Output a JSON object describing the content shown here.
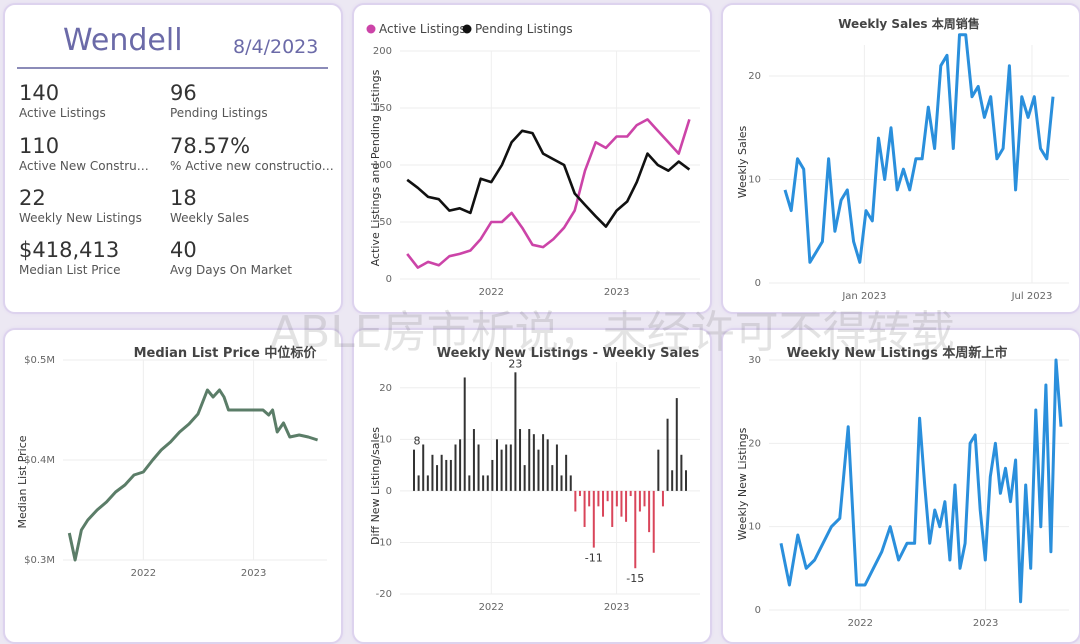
{
  "kpi_card": {
    "name": "Wendell",
    "date": "8/4/2023",
    "metrics": [
      {
        "value": "140",
        "label": "Active Listings"
      },
      {
        "value": "96",
        "label": "Pending Listings"
      },
      {
        "value": "110",
        "label": "Active New Constructions"
      },
      {
        "value": "78.57%",
        "label": "% Active new constructions"
      },
      {
        "value": "22",
        "label": "Weekly New Listings"
      },
      {
        "value": "18",
        "label": "Weekly Sales"
      },
      {
        "value": "$418,413",
        "label": "Median List Price"
      },
      {
        "value": "40",
        "label": "Avg Days On Market"
      }
    ]
  },
  "watermark": "ABLE房市析说，未经许可不得转载",
  "colors": {
    "active": "#cc44a8",
    "pending": "#111111",
    "blue": "#2a8fdc",
    "green": "#5b7d68",
    "pos_bar": "#333333",
    "neg_bar": "#d9455a"
  },
  "chart_data": [
    {
      "id": "listings",
      "type": "line",
      "title": "",
      "ylabel": "Active Listings and Pending Listings",
      "xlabel": "",
      "ylim": [
        0,
        200
      ],
      "yticks": [
        "0",
        "50",
        "100",
        "150",
        "200"
      ],
      "xticks": [
        "2022",
        "2023"
      ],
      "legend_position": "top-left",
      "grid": true,
      "series": [
        {
          "name": "Active Listings",
          "x": [
            "2021-05-01",
            "2021-06-01",
            "2021-07-01",
            "2021-08-01",
            "2021-09-01",
            "2021-10-01",
            "2021-11-01",
            "2021-12-01",
            "2022-01-01",
            "2022-02-01",
            "2022-03-01",
            "2022-04-01",
            "2022-05-01",
            "2022-06-01",
            "2022-07-01",
            "2022-08-01",
            "2022-09-01",
            "2022-10-01",
            "2022-11-01",
            "2022-12-01",
            "2023-01-01",
            "2023-02-01",
            "2023-03-01",
            "2023-04-01",
            "2023-05-01",
            "2023-06-01",
            "2023-07-01",
            "2023-08-01"
          ],
          "y": [
            22,
            10,
            15,
            12,
            20,
            22,
            25,
            35,
            50,
            50,
            58,
            45,
            30,
            28,
            35,
            45,
            60,
            95,
            120,
            115,
            125,
            125,
            135,
            140,
            130,
            120,
            110,
            140
          ]
        },
        {
          "name": "Pending Listings",
          "x": [
            "2021-05-01",
            "2021-06-01",
            "2021-07-01",
            "2021-08-01",
            "2021-09-01",
            "2021-10-01",
            "2021-11-01",
            "2021-12-01",
            "2022-01-01",
            "2022-02-01",
            "2022-03-01",
            "2022-04-01",
            "2022-05-01",
            "2022-06-01",
            "2022-07-01",
            "2022-08-01",
            "2022-09-01",
            "2022-10-01",
            "2022-11-01",
            "2022-12-01",
            "2023-01-01",
            "2023-02-01",
            "2023-03-01",
            "2023-04-01",
            "2023-05-01",
            "2023-06-01",
            "2023-07-01",
            "2023-08-01"
          ],
          "y": [
            87,
            80,
            72,
            70,
            60,
            62,
            58,
            88,
            85,
            100,
            120,
            130,
            128,
            110,
            105,
            100,
            75,
            65,
            55,
            46,
            60,
            68,
            85,
            110,
            100,
            95,
            103,
            96
          ]
        }
      ]
    },
    {
      "id": "weekly_sales",
      "type": "line",
      "title": "Weekly Sales 本周销售",
      "ylabel": "Weekly Sales",
      "xlabel": "",
      "ylim": [
        0,
        23
      ],
      "yticks": [
        "0",
        "10",
        "20"
      ],
      "xticks": [
        "Jan 2023",
        "Jul 2023"
      ],
      "grid": true,
      "series": [
        {
          "name": "",
          "y": [
            9,
            7,
            12,
            11,
            2,
            3,
            4,
            12,
            5,
            8,
            9,
            4,
            2,
            7,
            6,
            14,
            10,
            15,
            9,
            11,
            9,
            12,
            12,
            17,
            13,
            21,
            22,
            13,
            24,
            24,
            18,
            19,
            16,
            18,
            12,
            13,
            21,
            9,
            18,
            16,
            18,
            13,
            12,
            18
          ]
        }
      ]
    },
    {
      "id": "median_list_price",
      "type": "line",
      "title": "Median List Price  中位标价",
      "ylabel": "Median List Price",
      "xlabel": "",
      "ylim": [
        0.3,
        0.5
      ],
      "yticks": [
        "$0.3M",
        "$0.4M",
        "$0.5M"
      ],
      "xticks": [
        "2022",
        "2023"
      ],
      "grid": true,
      "series": [
        {
          "name": "",
          "x": [
            "2021-05-01",
            "2021-05-20",
            "2021-06-10",
            "2021-07-01",
            "2021-08-01",
            "2021-09-01",
            "2021-10-01",
            "2021-11-01",
            "2021-12-01",
            "2022-01-01",
            "2022-02-01",
            "2022-03-01",
            "2022-04-01",
            "2022-05-01",
            "2022-06-01",
            "2022-07-01",
            "2022-08-01",
            "2022-08-20",
            "2022-09-10",
            "2022-09-25",
            "2022-10-10",
            "2022-11-01",
            "2022-12-01",
            "2023-01-01",
            "2023-02-01",
            "2023-02-20",
            "2023-03-05",
            "2023-03-20",
            "2023-04-10",
            "2023-05-01",
            "2023-06-01",
            "2023-07-01",
            "2023-08-01"
          ],
          "y": [
            0.327,
            0.3,
            0.33,
            0.34,
            0.35,
            0.358,
            0.368,
            0.375,
            0.385,
            0.388,
            0.4,
            0.41,
            0.418,
            0.428,
            0.436,
            0.446,
            0.47,
            0.463,
            0.47,
            0.463,
            0.45,
            0.45,
            0.45,
            0.45,
            0.45,
            0.445,
            0.45,
            0.428,
            0.437,
            0.423,
            0.425,
            0.423,
            0.42
          ]
        }
      ]
    },
    {
      "id": "diff",
      "type": "bar",
      "title": "Weekly New Listings - Weekly Sales",
      "ylabel": "Diff New Listing/sales",
      "xlabel": "",
      "ylim": [
        -20,
        25
      ],
      "yticks": [
        "-20",
        "-10",
        "0",
        "10",
        "20"
      ],
      "xticks": [
        "2022",
        "2023"
      ],
      "data_labels": [
        "8",
        "23",
        "-11",
        "-15"
      ],
      "grid": true,
      "series": [
        {
          "name": "",
          "values": [
            8,
            3,
            9,
            3,
            7,
            5,
            7,
            6,
            6,
            9,
            10,
            22,
            3,
            12,
            9,
            3,
            3,
            6,
            10,
            8,
            9,
            9,
            23,
            12,
            5,
            12,
            11,
            8,
            11,
            10,
            5,
            9,
            3,
            7,
            3,
            -4,
            -1,
            -7,
            -3,
            -11,
            -3,
            -5,
            -2,
            -7,
            -3,
            -5,
            -6,
            -1,
            -15,
            -4,
            -3,
            -8,
            -12,
            8,
            -3,
            14,
            4,
            18,
            7,
            4
          ]
        }
      ]
    },
    {
      "id": "weekly_new_listings",
      "type": "line",
      "title": "Weekly New Listings  本周新上市",
      "ylabel": "Weekly New Listings",
      "xlabel": "",
      "ylim": [
        0,
        30
      ],
      "yticks": [
        "0",
        "10",
        "20",
        "30"
      ],
      "xticks": [
        "2022",
        "2023"
      ],
      "grid": true,
      "series": [
        {
          "name": "",
          "y": [
            8,
            3,
            9,
            5,
            6,
            8,
            10,
            11,
            22,
            3,
            3,
            5,
            7,
            10,
            6,
            8,
            8,
            23,
            15,
            8,
            12,
            10,
            13,
            6,
            15,
            5,
            8,
            20,
            21,
            12,
            6,
            16,
            20,
            14,
            17,
            13,
            18,
            1,
            15,
            5,
            24,
            10,
            27,
            7,
            30,
            22
          ]
        }
      ]
    }
  ]
}
